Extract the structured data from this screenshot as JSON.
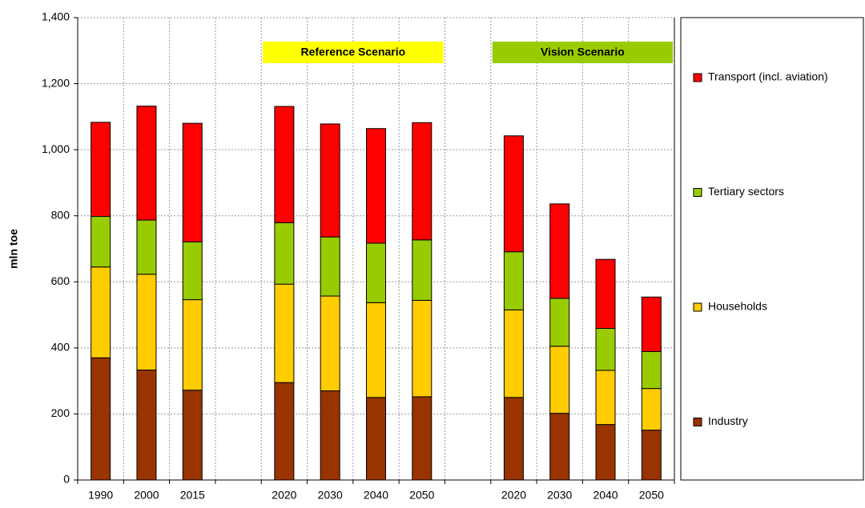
{
  "chart_data": {
    "type": "stacked_bar",
    "y_label": "mln toe",
    "categories": [
      "1990",
      "2000",
      "2015",
      null,
      "2020",
      "2030",
      "2040",
      "2050",
      null,
      "2020",
      "2030",
      "2040",
      "2050"
    ],
    "series": [
      {
        "name": "Industry",
        "color": "#993300",
        "values": [
          370,
          333,
          272,
          null,
          295,
          270,
          250,
          252,
          null,
          250,
          202,
          168,
          151
        ]
      },
      {
        "name": "Households",
        "color": "#ffcc00",
        "values": [
          275,
          290,
          274,
          null,
          298,
          287,
          287,
          292,
          null,
          265,
          203,
          164,
          126
        ]
      },
      {
        "name": "Tertiary sectors",
        "color": "#99cc00",
        "values": [
          153,
          164,
          175,
          null,
          186,
          179,
          180,
          183,
          null,
          176,
          145,
          127,
          112
        ]
      },
      {
        "name": "Transport (incl. aviation)",
        "color": "#ff0000",
        "values": [
          285,
          345,
          359,
          null,
          352,
          342,
          347,
          355,
          null,
          351,
          286,
          209,
          165
        ]
      }
    ],
    "annotations": [
      {
        "text": "Reference Scenario",
        "color": "#ffff00"
      },
      {
        "text": "Vision  Scenario",
        "color": "#99cc00"
      }
    ],
    "ylim": [
      0,
      1400
    ],
    "yticks": [
      0,
      200,
      400,
      600,
      800,
      {
        "value": 1000,
        "label": "1,000"
      },
      {
        "value": 1200,
        "label": "1,200"
      },
      {
        "value": 1400,
        "label": "1,400"
      }
    ],
    "grid": true
  }
}
